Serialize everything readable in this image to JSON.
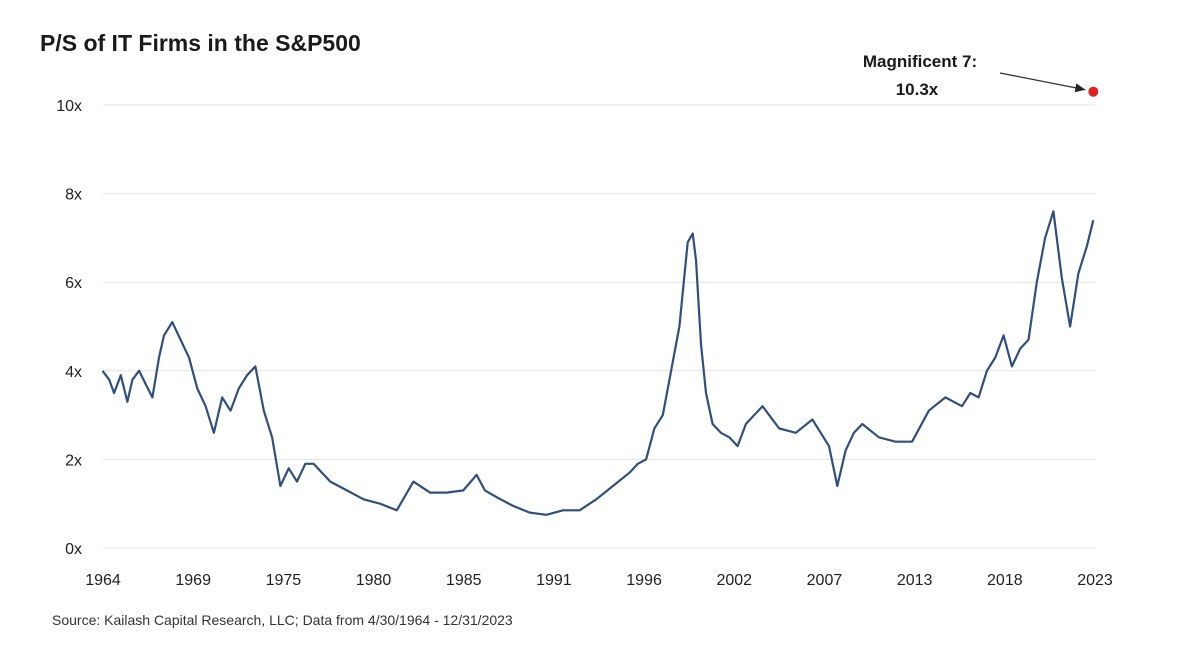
{
  "chart_data": {
    "type": "line",
    "title": "P/S of IT Firms in the S&P500",
    "source": "Source: Kailash Capital Research, LLC; Data from 4/30/1964 - 12/31/2023",
    "x_tick_labels": [
      "1964",
      "1969",
      "1975",
      "1980",
      "1985",
      "1991",
      "1996",
      "2002",
      "2007",
      "2013",
      "2018",
      "2023"
    ],
    "y_ticks": [
      0,
      2,
      4,
      6,
      8,
      10
    ],
    "y_tick_labels": [
      "0x",
      "2x",
      "4x",
      "6x",
      "8x",
      "10x"
    ],
    "xlim": [
      1964.33,
      2024.0
    ],
    "ylim": [
      0,
      10
    ],
    "grid": "horizontal",
    "line_color": "#2f4f7f",
    "point_color": "#e02020",
    "series": [
      {
        "x": [
          1964.3,
          1964.7,
          1965.0,
          1965.4,
          1965.8,
          1966.1,
          1966.5,
          1966.9,
          1967.3,
          1967.7,
          1968.0,
          1968.5,
          1969.0,
          1969.5,
          1970.0,
          1970.5,
          1971.0,
          1971.5,
          1972.0,
          1972.5,
          1973.0,
          1973.5,
          1974.0,
          1974.5,
          1975.0,
          1975.5,
          1976.0,
          1976.5,
          1977.0,
          1978.0,
          1979.0,
          1980.0,
          1981.0,
          1982.0,
          1983.0,
          1984.0,
          1985.0,
          1986.0,
          1986.8,
          1987.3,
          1988.0,
          1989.0,
          1990.0,
          1991.0,
          1992.0,
          1993.0,
          1994.0,
          1995.0,
          1996.0,
          1996.5,
          1997.0,
          1997.5,
          1998.0,
          1998.5,
          1999.0,
          1999.5,
          1999.8,
          2000.0,
          2000.3,
          2000.6,
          2001.0,
          2001.5,
          2002.0,
          2002.5,
          2003.0,
          2004.0,
          2005.0,
          2006.0,
          2007.0,
          2007.5,
          2008.0,
          2008.5,
          2009.0,
          2009.5,
          2010.0,
          2011.0,
          2012.0,
          2013.0,
          2014.0,
          2015.0,
          2016.0,
          2016.5,
          2017.0,
          2017.5,
          2018.0,
          2018.5,
          2019.0,
          2019.5,
          2020.0,
          2020.5,
          2021.0,
          2021.5,
          2022.0,
          2022.5,
          2023.0,
          2023.5,
          2023.9
        ],
        "y": [
          4.0,
          3.8,
          3.5,
          3.9,
          3.3,
          3.8,
          4.0,
          3.7,
          3.4,
          4.3,
          4.8,
          5.1,
          4.7,
          4.3,
          3.6,
          3.2,
          2.6,
          3.4,
          3.1,
          3.6,
          3.9,
          4.1,
          3.1,
          2.5,
          1.4,
          1.8,
          1.5,
          1.9,
          1.9,
          1.5,
          1.3,
          1.1,
          1.0,
          0.85,
          1.5,
          1.25,
          1.25,
          1.3,
          1.65,
          1.3,
          1.15,
          0.95,
          0.8,
          0.75,
          0.85,
          0.85,
          1.1,
          1.4,
          1.7,
          1.9,
          2.0,
          2.7,
          3.0,
          4.0,
          5.0,
          6.9,
          7.1,
          6.5,
          4.6,
          3.5,
          2.8,
          2.6,
          2.5,
          2.3,
          2.8,
          3.2,
          2.7,
          2.6,
          2.9,
          2.6,
          2.3,
          1.4,
          2.2,
          2.6,
          2.8,
          2.5,
          2.4,
          2.4,
          3.1,
          3.4,
          3.2,
          3.5,
          3.4,
          4.0,
          4.3,
          4.8,
          4.1,
          4.5,
          4.7,
          6.0,
          7.0,
          7.6,
          6.1,
          5.0,
          6.2,
          6.8,
          7.4
        ]
      }
    ],
    "highlight": {
      "x": 2023.9,
      "y": 10.3,
      "label_line1": "Magnificent 7:",
      "label_line2": "10.3x"
    }
  }
}
